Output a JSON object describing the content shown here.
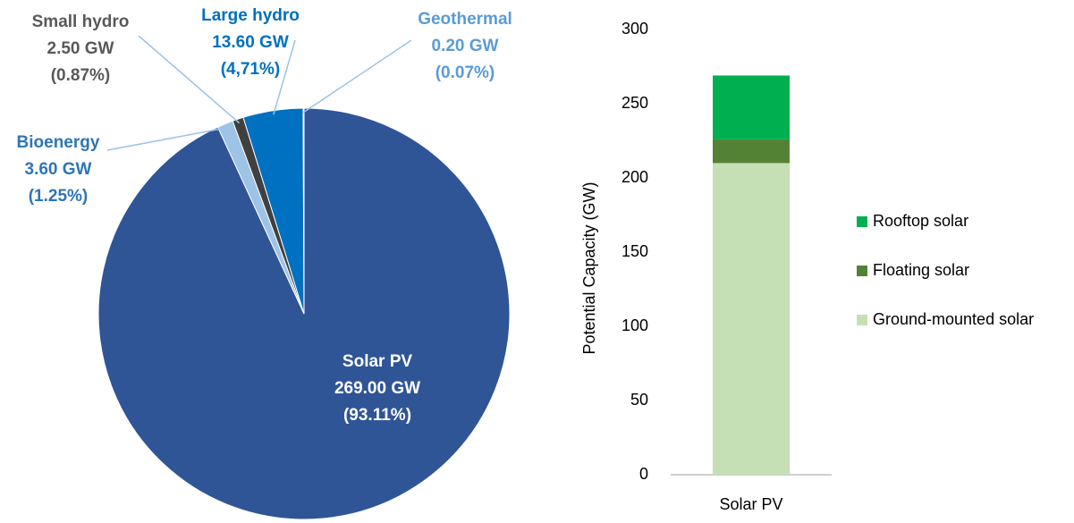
{
  "chart_data": [
    {
      "type": "pie",
      "categories": [
        "Solar PV",
        "Bioenergy",
        "Small hydro",
        "Large hydro",
        "Geothermal"
      ],
      "values": [
        269,
        3.6,
        2.5,
        13.6,
        0.2
      ],
      "value_labels": [
        "269.00 GW",
        "3.60 GW",
        "2.50 GW",
        "13.60 GW",
        "0.20 GW"
      ],
      "percent_labels": [
        "(93.11%)",
        "(1.25%)",
        "(0.87%)",
        "(4,71%)",
        "(0.07%)"
      ],
      "colors": [
        "#2f5597",
        "#9dc3e6",
        "#404040",
        "#0070c0",
        "#5b9bd5"
      ],
      "label_colors": [
        "#ffffff",
        "#2e75b6",
        "#595959",
        "#0070c0",
        "#5b9bd5"
      ]
    },
    {
      "type": "bar",
      "categories": [
        "Solar PV"
      ],
      "stacked": true,
      "ylabel": "Potential Capacity (GW)",
      "ylim": [
        0,
        300
      ],
      "yticks": [
        0,
        50,
        100,
        150,
        200,
        250,
        300
      ],
      "grid": false,
      "legend": "right",
      "series": [
        {
          "name": "Ground-mounted solar",
          "color": "#c5e0b4",
          "values": [
            210
          ]
        },
        {
          "name": "Floating solar",
          "color": "#548235",
          "values": [
            16
          ]
        },
        {
          "name": "Rooftop solar",
          "color": "#00b050",
          "values": [
            43
          ]
        }
      ]
    }
  ]
}
